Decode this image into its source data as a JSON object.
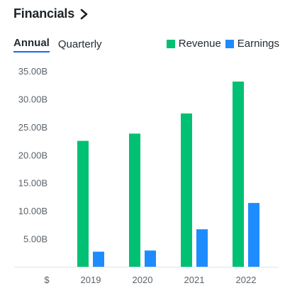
{
  "header": {
    "title": "Financials",
    "chevron_icon": "chevron-right-icon"
  },
  "tabs": [
    {
      "label": "Annual",
      "active": true
    },
    {
      "label": "Quarterly",
      "active": false
    }
  ],
  "colors": {
    "revenue": "#00c073",
    "earnings": "#1e8cff",
    "tab_underline": "#0f69ff"
  },
  "chart_data": {
    "type": "bar",
    "categories": [
      "2019",
      "2020",
      "2021",
      "2022"
    ],
    "series": [
      {
        "name": "Revenue",
        "values": [
          22.5,
          23.8,
          27.4,
          33.1
        ]
      },
      {
        "name": "Earnings",
        "values": [
          2.7,
          2.9,
          6.7,
          11.4
        ]
      }
    ],
    "y_ticks": [
      5,
      10,
      15,
      20,
      25,
      30,
      35
    ],
    "y_tick_labels": [
      "5.00B",
      "10.00B",
      "15.00B",
      "20.00B",
      "25.00B",
      "30.00B",
      "35.00B"
    ],
    "y_unit_label": "$",
    "ylim": [
      0,
      35
    ],
    "legend_position": "top-right",
    "grid": false
  }
}
